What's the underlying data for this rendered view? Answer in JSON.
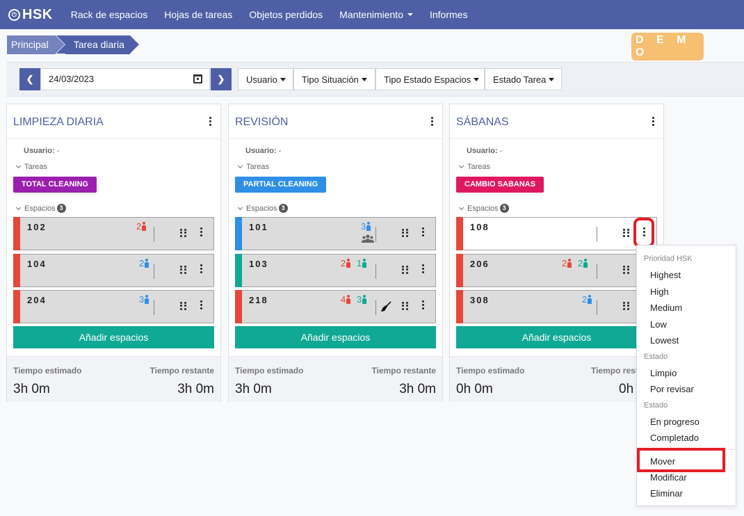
{
  "nav": {
    "logo": "HSK",
    "items": [
      "Rack de espacios",
      "Hojas de tareas",
      "Objetos perdidos",
      "Mantenimiento",
      "Informes"
    ]
  },
  "breadcrumb": [
    "Principal",
    "Tarea diaria"
  ],
  "demo_label": "D E M O",
  "filters": {
    "date": "24/03/2023",
    "usuario": "Usuario",
    "tipo_situacion": "Tipo Situación",
    "tipo_estado_espacios": "Tipo Estado Espacios",
    "estado_tarea": "Estado Tarea"
  },
  "labels": {
    "usuario_label": "Usuario:",
    "usuario_value": "-",
    "tareas": "Tareas",
    "espacios": "Espacios",
    "add_spaces": "Añadir espacios",
    "tiempo_estimado": "Tiempo estimado",
    "tiempo_restante": "Tiempo restante"
  },
  "columns": [
    {
      "title": "LIMPIEZA DIARIA",
      "tag": "TOTAL CLEANING",
      "tag_color": "#9b1fae",
      "espacios_count": "3",
      "rooms": [
        {
          "number": "102",
          "bar_color": "#e7473a",
          "red": "2",
          "blue": "",
          "green": ""
        },
        {
          "number": "104",
          "bar_color": "#e7473a",
          "red": "",
          "blue": "2",
          "green": ""
        },
        {
          "number": "204",
          "bar_color": "#e7473a",
          "red": "",
          "blue": "3",
          "green": ""
        }
      ],
      "tiempo_estimado": "3h 0m",
      "tiempo_restante": "3h 0m"
    },
    {
      "title": "REVISIÓN",
      "tag": "PARTIAL CLEANING",
      "tag_color": "#2f8fe6",
      "espacios_count": "3",
      "rooms": [
        {
          "number": "101",
          "bar_color": "#2f8fe6",
          "red": "",
          "blue": "3",
          "green": ""
        },
        {
          "number": "103",
          "bar_color": "#10a995",
          "red": "2",
          "blue": "",
          "green": "1"
        },
        {
          "number": "218",
          "bar_color": "#e7473a",
          "red": "4",
          "blue": "",
          "green": "3"
        }
      ],
      "tiempo_estimado": "3h 0m",
      "tiempo_restante": "3h 0m"
    },
    {
      "title": "SÁBANAS",
      "tag": "CAMBIO SABANAS",
      "tag_color": "#e0185f",
      "espacios_count": "3",
      "rooms": [
        {
          "number": "108",
          "bar_color": "#e7473a",
          "red": "",
          "blue": "",
          "green": ""
        },
        {
          "number": "206",
          "bar_color": "#e7473a",
          "red": "2",
          "blue": "",
          "green": "2"
        },
        {
          "number": "308",
          "bar_color": "#e7473a",
          "red": "",
          "blue": "2",
          "green": ""
        }
      ],
      "tiempo_estimado": "0h 0m",
      "tiempo_restante": "0h"
    }
  ],
  "menu": {
    "header_prioridad": "Prioridad HSK",
    "prioridad": [
      "Highest",
      "High",
      "Medium",
      "Low",
      "Lowest"
    ],
    "header_estado1": "Estado",
    "estado1": [
      "Limpio",
      "Por revisar"
    ],
    "header_estado2": "Estado",
    "estado2": [
      "En progreso",
      "Completado"
    ],
    "actions": [
      "Mover",
      "Modificar",
      "Eliminar"
    ]
  },
  "colors": {
    "primary": "#4e5fa6",
    "teal": "#10a995",
    "red_person": "#e7473a",
    "blue_person": "#2f8fe6",
    "green_person": "#10a995",
    "highlight": "#e21f26"
  }
}
